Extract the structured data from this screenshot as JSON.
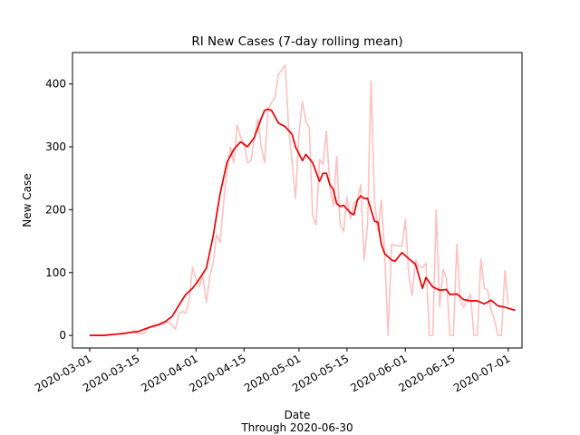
{
  "chart_data": {
    "type": "line",
    "title": "RI New Cases (7-day rolling mean)",
    "xlabel": "Date",
    "xlabel_sub": "Through 2020-06-30",
    "ylabel": "New Case",
    "xlim": [
      "2020-02-25",
      "2020-07-05"
    ],
    "ylim": [
      -20,
      450
    ],
    "x_ticks": [
      "2020-03-01",
      "2020-03-15",
      "2020-04-01",
      "2020-04-15",
      "2020-05-01",
      "2020-05-15",
      "2020-06-01",
      "2020-06-15",
      "2020-07-01"
    ],
    "y_ticks": [
      0,
      100,
      200,
      300,
      400
    ],
    "grid": false,
    "series": [
      {
        "role": "daily",
        "color": "#ffc0c0",
        "points": [
          [
            "2020-03-01",
            0
          ],
          [
            "2020-03-03",
            0
          ],
          [
            "2020-03-05",
            0
          ],
          [
            "2020-03-07",
            1
          ],
          [
            "2020-03-09",
            2
          ],
          [
            "2020-03-11",
            3
          ],
          [
            "2020-03-13",
            5
          ],
          [
            "2020-03-14",
            8
          ],
          [
            "2020-03-15",
            2
          ],
          [
            "2020-03-17",
            4
          ],
          [
            "2020-03-18",
            12
          ],
          [
            "2020-03-20",
            14
          ],
          [
            "2020-03-22",
            18
          ],
          [
            "2020-03-24",
            22
          ],
          [
            "2020-03-26",
            10
          ],
          [
            "2020-03-27",
            35
          ],
          [
            "2020-03-28",
            38
          ],
          [
            "2020-03-29",
            36
          ],
          [
            "2020-03-30",
            55
          ],
          [
            "2020-03-31",
            108
          ],
          [
            "2020-04-01",
            90
          ],
          [
            "2020-04-02",
            78
          ],
          [
            "2020-04-03",
            95
          ],
          [
            "2020-04-04",
            52
          ],
          [
            "2020-04-05",
            95
          ],
          [
            "2020-04-06",
            115
          ],
          [
            "2020-04-07",
            160
          ],
          [
            "2020-04-08",
            148
          ],
          [
            "2020-04-09",
            210
          ],
          [
            "2020-04-10",
            260
          ],
          [
            "2020-04-11",
            300
          ],
          [
            "2020-04-12",
            275
          ],
          [
            "2020-04-13",
            335
          ],
          [
            "2020-04-14",
            315
          ],
          [
            "2020-04-15",
            305
          ],
          [
            "2020-04-16",
            275
          ],
          [
            "2020-04-17",
            278
          ],
          [
            "2020-04-18",
            315
          ],
          [
            "2020-04-19",
            345
          ],
          [
            "2020-04-20",
            300
          ],
          [
            "2020-04-21",
            275
          ],
          [
            "2020-04-22",
            360
          ],
          [
            "2020-04-23",
            370
          ],
          [
            "2020-04-24",
            378
          ],
          [
            "2020-04-25",
            415
          ],
          [
            "2020-04-27",
            430
          ],
          [
            "2020-04-28",
            330
          ],
          [
            "2020-04-29",
            275
          ],
          [
            "2020-04-30",
            218
          ],
          [
            "2020-05-01",
            322
          ],
          [
            "2020-05-02",
            372
          ],
          [
            "2020-05-03",
            340
          ],
          [
            "2020-05-04",
            330
          ],
          [
            "2020-05-05",
            190
          ],
          [
            "2020-05-06",
            176
          ],
          [
            "2020-05-07",
            280
          ],
          [
            "2020-05-08",
            272
          ],
          [
            "2020-05-09",
            325
          ],
          [
            "2020-05-10",
            235
          ],
          [
            "2020-05-11",
            205
          ],
          [
            "2020-05-12",
            285
          ],
          [
            "2020-05-13",
            176
          ],
          [
            "2020-05-14",
            165
          ],
          [
            "2020-05-15",
            220
          ],
          [
            "2020-05-16",
            185
          ],
          [
            "2020-05-17",
            210
          ],
          [
            "2020-05-18",
            215
          ],
          [
            "2020-05-19",
            240
          ],
          [
            "2020-05-20",
            120
          ],
          [
            "2020-05-21",
            175
          ],
          [
            "2020-05-22",
            405
          ],
          [
            "2020-05-23",
            215
          ],
          [
            "2020-05-24",
            165
          ],
          [
            "2020-05-25",
            215
          ],
          [
            "2020-05-26",
            130
          ],
          [
            "2020-05-27",
            0
          ],
          [
            "2020-05-28",
            145
          ],
          [
            "2020-05-29",
            143
          ],
          [
            "2020-05-31",
            142
          ],
          [
            "2020-06-01",
            185
          ],
          [
            "2020-06-02",
            95
          ],
          [
            "2020-06-03",
            63
          ],
          [
            "2020-06-04",
            120
          ],
          [
            "2020-06-05",
            110
          ],
          [
            "2020-06-06",
            108
          ],
          [
            "2020-06-07",
            115
          ],
          [
            "2020-06-08",
            0
          ],
          [
            "2020-06-09",
            0
          ],
          [
            "2020-06-10",
            200
          ],
          [
            "2020-06-11",
            45
          ],
          [
            "2020-06-12",
            105
          ],
          [
            "2020-06-13",
            90
          ],
          [
            "2020-06-14",
            0
          ],
          [
            "2020-06-15",
            0
          ],
          [
            "2020-06-16",
            145
          ],
          [
            "2020-06-17",
            55
          ],
          [
            "2020-06-18",
            45
          ],
          [
            "2020-06-19",
            55
          ],
          [
            "2020-06-20",
            65
          ],
          [
            "2020-06-21",
            0
          ],
          [
            "2020-06-22",
            0
          ],
          [
            "2020-06-23",
            122
          ],
          [
            "2020-06-24",
            75
          ],
          [
            "2020-06-25",
            72
          ],
          [
            "2020-06-26",
            40
          ],
          [
            "2020-06-27",
            25
          ],
          [
            "2020-06-28",
            0
          ],
          [
            "2020-06-29",
            0
          ],
          [
            "2020-06-30",
            103
          ],
          [
            "2020-07-01",
            48
          ]
        ]
      },
      {
        "role": "rolling-mean",
        "color": "#ee0000",
        "points": [
          [
            "2020-03-01",
            0
          ],
          [
            "2020-03-05",
            0
          ],
          [
            "2020-03-07",
            1
          ],
          [
            "2020-03-09",
            2
          ],
          [
            "2020-03-11",
            3
          ],
          [
            "2020-03-13",
            5
          ],
          [
            "2020-03-15",
            6
          ],
          [
            "2020-03-17",
            10
          ],
          [
            "2020-03-19",
            14
          ],
          [
            "2020-03-21",
            17
          ],
          [
            "2020-03-23",
            22
          ],
          [
            "2020-03-25",
            30
          ],
          [
            "2020-03-27",
            48
          ],
          [
            "2020-03-29",
            65
          ],
          [
            "2020-03-31",
            75
          ],
          [
            "2020-04-02",
            90
          ],
          [
            "2020-04-04",
            107
          ],
          [
            "2020-04-06",
            158
          ],
          [
            "2020-04-08",
            225
          ],
          [
            "2020-04-10",
            275
          ],
          [
            "2020-04-12",
            296
          ],
          [
            "2020-04-14",
            308
          ],
          [
            "2020-04-16",
            300
          ],
          [
            "2020-04-18",
            315
          ],
          [
            "2020-04-20",
            345
          ],
          [
            "2020-04-21",
            358
          ],
          [
            "2020-04-22",
            360
          ],
          [
            "2020-04-23",
            358
          ],
          [
            "2020-04-25",
            338
          ],
          [
            "2020-04-27",
            332
          ],
          [
            "2020-04-29",
            320
          ],
          [
            "2020-04-30",
            300
          ],
          [
            "2020-05-02",
            278
          ],
          [
            "2020-05-03",
            288
          ],
          [
            "2020-05-05",
            275
          ],
          [
            "2020-05-07",
            245
          ],
          [
            "2020-05-08",
            258
          ],
          [
            "2020-05-09",
            258
          ],
          [
            "2020-05-10",
            240
          ],
          [
            "2020-05-11",
            232
          ],
          [
            "2020-05-12",
            210
          ],
          [
            "2020-05-13",
            205
          ],
          [
            "2020-05-14",
            207
          ],
          [
            "2020-05-16",
            195
          ],
          [
            "2020-05-17",
            192
          ],
          [
            "2020-05-18",
            215
          ],
          [
            "2020-05-19",
            222
          ],
          [
            "2020-05-20",
            218
          ],
          [
            "2020-05-21",
            218
          ],
          [
            "2020-05-22",
            200
          ],
          [
            "2020-05-23",
            182
          ],
          [
            "2020-05-24",
            180
          ],
          [
            "2020-05-25",
            145
          ],
          [
            "2020-05-26",
            130
          ],
          [
            "2020-05-28",
            120
          ],
          [
            "2020-05-29",
            118
          ],
          [
            "2020-05-30",
            125
          ],
          [
            "2020-05-31",
            132
          ],
          [
            "2020-06-02",
            122
          ],
          [
            "2020-06-04",
            113
          ],
          [
            "2020-06-06",
            75
          ],
          [
            "2020-06-07",
            92
          ],
          [
            "2020-06-09",
            77
          ],
          [
            "2020-06-11",
            72
          ],
          [
            "2020-06-13",
            73
          ],
          [
            "2020-06-14",
            65
          ],
          [
            "2020-06-16",
            66
          ],
          [
            "2020-06-18",
            57
          ],
          [
            "2020-06-20",
            55
          ],
          [
            "2020-06-22",
            55
          ],
          [
            "2020-06-24",
            50
          ],
          [
            "2020-06-26",
            56
          ],
          [
            "2020-06-28",
            47
          ],
          [
            "2020-06-30",
            45
          ],
          [
            "2020-07-03",
            40
          ]
        ]
      }
    ]
  }
}
